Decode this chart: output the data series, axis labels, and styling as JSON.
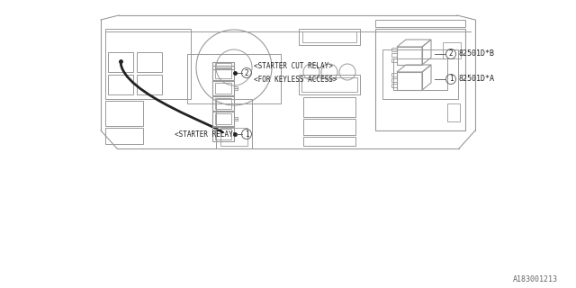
{
  "bg_color": "#ffffff",
  "lc": "#999999",
  "dc": "#222222",
  "mc": "#666666",
  "part_number_1": "82501D*A",
  "part_number_2": "82501D*B",
  "label_starter_relay": "<STARTER RELAY>",
  "label_starter_cut_relay": "<STARTER CUT RELAY>",
  "label_for_keyless": "<FOR KEYLESS ACCESS>",
  "watermark": "A183001213",
  "fig_width": 6.4,
  "fig_height": 3.2,
  "dpi": 100
}
